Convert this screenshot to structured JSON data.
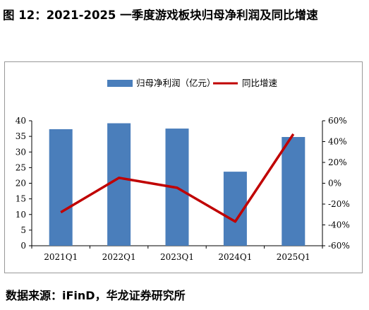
{
  "figure": {
    "title": "图 12：2021-2025 一季度游戏板块归母净利润及同比增速",
    "source": "数据来源：iFinD，华龙证券研究所"
  },
  "colors": {
    "bar": "#4a7ebb",
    "line": "#c00000",
    "axis": "#000000",
    "frame": "#999999"
  },
  "chart_data": {
    "type": "bar",
    "categories": [
      "2021Q1",
      "2022Q1",
      "2023Q1",
      "2024Q1",
      "2025Q1"
    ],
    "series": [
      {
        "name": "归母净利润（亿元）",
        "type": "bar",
        "axis": "left",
        "values": [
          37.3,
          39.2,
          37.5,
          23.7,
          34.8
        ]
      },
      {
        "name": "同比增速",
        "type": "line",
        "axis": "right",
        "values": [
          -27.9,
          5.2,
          -4.3,
          -36.8,
          47.2
        ]
      }
    ],
    "left_axis": {
      "ylim": [
        0,
        40
      ],
      "ticks": [
        "0",
        "5",
        "10",
        "15",
        "20",
        "25",
        "30",
        "35",
        "40"
      ]
    },
    "right_axis": {
      "ylim": [
        -60,
        60
      ],
      "ticks": [
        "-60%",
        "-40%",
        "-20%",
        "0%",
        "20%",
        "40%",
        "60%"
      ]
    },
    "legend_position": "top-center",
    "grid": false
  }
}
